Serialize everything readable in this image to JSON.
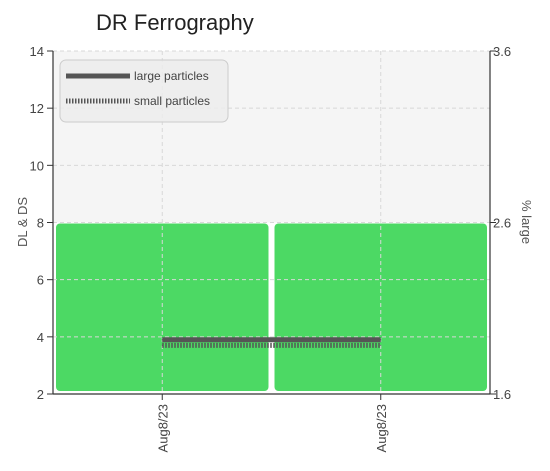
{
  "chart_data": {
    "type": "line",
    "title": "DR Ferrography",
    "xlabel": "",
    "ylabel": "DL & DS",
    "y2label": "% large",
    "categories": [
      "Aug8/23",
      "Aug8/23"
    ],
    "ylim": [
      2,
      14
    ],
    "y_ticks": [
      2,
      4,
      6,
      8,
      10,
      12,
      14
    ],
    "y2lim": [
      1.6,
      3.6
    ],
    "y2_ticks": [
      1.6,
      2.6,
      3.6
    ],
    "grid": true,
    "legend_position": "top-left",
    "background_bands": [
      {
        "from": 2,
        "to": 8,
        "color": "#4cd964"
      },
      {
        "from": 8,
        "to": 14,
        "color": "#f5f5f5"
      }
    ],
    "series": [
      {
        "name": "large particles",
        "values": [
          3.9,
          3.9
        ],
        "color": "#555555",
        "style": "solid"
      },
      {
        "name": "small particles",
        "values": [
          3.7,
          3.7
        ],
        "color": "#555555",
        "style": "dotted"
      }
    ]
  }
}
